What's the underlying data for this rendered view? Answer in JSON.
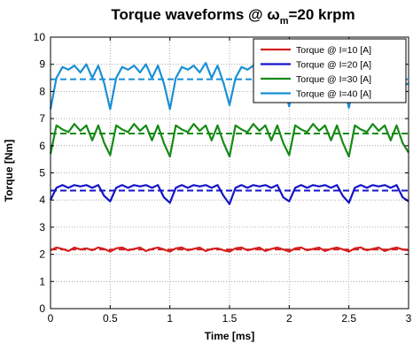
{
  "chart_data": {
    "type": "line",
    "title": {
      "prefix": "Torque waveforms @ ",
      "symbol": "ω",
      "subscript": "m",
      "suffix": "=20 krpm"
    },
    "xlabel": "Time [ms]",
    "ylabel": "Torque [Nm]",
    "xlim": [
      0,
      3
    ],
    "ylim": [
      0,
      10
    ],
    "xticks": [
      "0",
      "0.5",
      "1",
      "1.5",
      "2",
      "2.5",
      "3"
    ],
    "yticks": [
      "0",
      "1",
      "2",
      "3",
      "4",
      "5",
      "6",
      "7",
      "8",
      "9",
      "10"
    ],
    "grid": true,
    "legend_position": "top-right",
    "series": [
      {
        "name": "Torque @ I=10 [A]",
        "color": "#d42020",
        "mean": 2.18,
        "x": [
          0,
          0.05,
          0.1,
          0.15,
          0.2,
          0.25,
          0.3,
          0.35,
          0.4,
          0.45,
          0.5,
          0.55,
          0.6,
          0.65,
          0.7,
          0.75,
          0.8,
          0.85,
          0.9,
          0.95,
          1,
          1.05,
          1.1,
          1.15,
          1.2,
          1.25,
          1.3,
          1.35,
          1.4,
          1.45,
          1.5,
          1.55,
          1.6,
          1.65,
          1.7,
          1.75,
          1.8,
          1.85,
          1.9,
          1.95,
          2,
          2.05,
          2.1,
          2.15,
          2.2,
          2.25,
          2.3,
          2.35,
          2.4,
          2.45,
          2.5,
          2.55,
          2.6,
          2.65,
          2.7,
          2.75,
          2.8,
          2.85,
          2.9,
          2.95,
          3
        ],
        "values": [
          2.15,
          2.25,
          2.2,
          2.12,
          2.25,
          2.18,
          2.22,
          2.15,
          2.25,
          2.2,
          2.1,
          2.22,
          2.25,
          2.15,
          2.2,
          2.25,
          2.12,
          2.2,
          2.25,
          2.18,
          2.1,
          2.22,
          2.25,
          2.15,
          2.2,
          2.25,
          2.12,
          2.2,
          2.22,
          2.15,
          2.1,
          2.22,
          2.25,
          2.15,
          2.2,
          2.25,
          2.12,
          2.2,
          2.25,
          2.18,
          2.1,
          2.22,
          2.25,
          2.15,
          2.2,
          2.25,
          2.12,
          2.2,
          2.25,
          2.18,
          2.1,
          2.22,
          2.25,
          2.15,
          2.2,
          2.25,
          2.12,
          2.2,
          2.25,
          2.18,
          2.15
        ]
      },
      {
        "name": "Torque @ I=20 [A]",
        "color": "#1414c8",
        "mean": 4.35,
        "x": [
          0,
          0.05,
          0.1,
          0.15,
          0.2,
          0.25,
          0.3,
          0.35,
          0.4,
          0.45,
          0.5,
          0.55,
          0.6,
          0.65,
          0.7,
          0.75,
          0.8,
          0.85,
          0.9,
          0.95,
          1,
          1.05,
          1.1,
          1.15,
          1.2,
          1.25,
          1.3,
          1.35,
          1.4,
          1.45,
          1.5,
          1.55,
          1.6,
          1.65,
          1.7,
          1.75,
          1.8,
          1.85,
          1.9,
          1.95,
          2,
          2.05,
          2.1,
          2.15,
          2.2,
          2.25,
          2.3,
          2.35,
          2.4,
          2.45,
          2.5,
          2.55,
          2.6,
          2.65,
          2.7,
          2.75,
          2.8,
          2.85,
          2.9,
          2.95,
          3
        ],
        "values": [
          4.0,
          4.45,
          4.55,
          4.45,
          4.55,
          4.5,
          4.55,
          4.45,
          4.55,
          4.15,
          3.95,
          4.45,
          4.55,
          4.45,
          4.55,
          4.5,
          4.55,
          4.45,
          4.55,
          4.1,
          3.9,
          4.45,
          4.55,
          4.45,
          4.55,
          4.5,
          4.55,
          4.45,
          4.55,
          4.15,
          3.85,
          4.45,
          4.55,
          4.45,
          4.55,
          4.5,
          4.55,
          4.45,
          4.55,
          4.1,
          3.95,
          4.45,
          4.55,
          4.45,
          4.55,
          4.5,
          4.55,
          4.45,
          4.55,
          4.15,
          3.9,
          4.45,
          4.55,
          4.45,
          4.55,
          4.5,
          4.55,
          4.45,
          4.55,
          4.1,
          3.95
        ]
      },
      {
        "name": "Torque @ I=30 [A]",
        "color": "#168a16",
        "mean": 6.45,
        "x": [
          0,
          0.05,
          0.1,
          0.15,
          0.2,
          0.25,
          0.3,
          0.35,
          0.4,
          0.45,
          0.5,
          0.55,
          0.6,
          0.65,
          0.7,
          0.75,
          0.8,
          0.85,
          0.9,
          0.95,
          1,
          1.05,
          1.1,
          1.15,
          1.2,
          1.25,
          1.3,
          1.35,
          1.4,
          1.45,
          1.5,
          1.55,
          1.6,
          1.65,
          1.7,
          1.75,
          1.8,
          1.85,
          1.9,
          1.95,
          2,
          2.05,
          2.1,
          2.15,
          2.2,
          2.25,
          2.3,
          2.35,
          2.4,
          2.45,
          2.5,
          2.55,
          2.6,
          2.65,
          2.7,
          2.75,
          2.8,
          2.85,
          2.9,
          2.95,
          3
        ],
        "values": [
          5.7,
          6.75,
          6.6,
          6.5,
          6.8,
          6.55,
          6.75,
          6.2,
          6.75,
          6.1,
          5.65,
          6.75,
          6.6,
          6.5,
          6.8,
          6.55,
          6.75,
          6.2,
          6.75,
          6.1,
          5.6,
          6.75,
          6.6,
          6.5,
          6.8,
          6.55,
          6.75,
          6.2,
          6.75,
          6.1,
          5.6,
          6.75,
          6.6,
          6.5,
          6.8,
          6.55,
          6.75,
          6.2,
          6.75,
          6.1,
          5.65,
          6.75,
          6.6,
          6.5,
          6.8,
          6.55,
          6.75,
          6.2,
          6.75,
          6.1,
          5.6,
          6.75,
          6.6,
          6.5,
          6.8,
          6.55,
          6.75,
          6.2,
          6.75,
          6.1,
          5.75
        ]
      },
      {
        "name": "Torque @ I=40 [A]",
        "color": "#1a8fd6",
        "mean": 8.45,
        "x": [
          0,
          0.05,
          0.1,
          0.15,
          0.2,
          0.25,
          0.3,
          0.35,
          0.4,
          0.45,
          0.5,
          0.55,
          0.6,
          0.65,
          0.7,
          0.75,
          0.8,
          0.85,
          0.9,
          0.95,
          1,
          1.05,
          1.1,
          1.15,
          1.2,
          1.25,
          1.3,
          1.35,
          1.4,
          1.45,
          1.5,
          1.55,
          1.6,
          1.65,
          1.7,
          1.75,
          1.8,
          1.85,
          1.9,
          1.95,
          2,
          2.05,
          2.1,
          2.15,
          2.2,
          2.25,
          2.3,
          2.35,
          2.4,
          2.45,
          2.5,
          2.55,
          2.6,
          2.65,
          2.7,
          2.75,
          2.8,
          2.85,
          2.9,
          2.95,
          3
        ],
        "values": [
          7.35,
          8.5,
          8.9,
          8.8,
          8.95,
          8.7,
          9.0,
          8.5,
          8.95,
          8.3,
          7.35,
          8.5,
          8.9,
          8.8,
          8.95,
          8.7,
          9.0,
          8.5,
          8.95,
          8.3,
          7.35,
          8.5,
          8.9,
          8.8,
          8.95,
          8.7,
          9.05,
          8.5,
          8.95,
          8.3,
          7.5,
          8.5,
          8.9,
          8.8,
          8.95,
          8.7,
          9.0,
          8.5,
          8.95,
          8.3,
          7.45,
          8.5,
          8.9,
          8.8,
          8.95,
          8.7,
          9.0,
          8.5,
          8.95,
          8.3,
          7.4,
          8.5,
          8.9,
          8.8,
          8.95,
          8.7,
          9.0,
          8.5,
          8.95,
          8.2,
          8.3
        ]
      }
    ]
  }
}
